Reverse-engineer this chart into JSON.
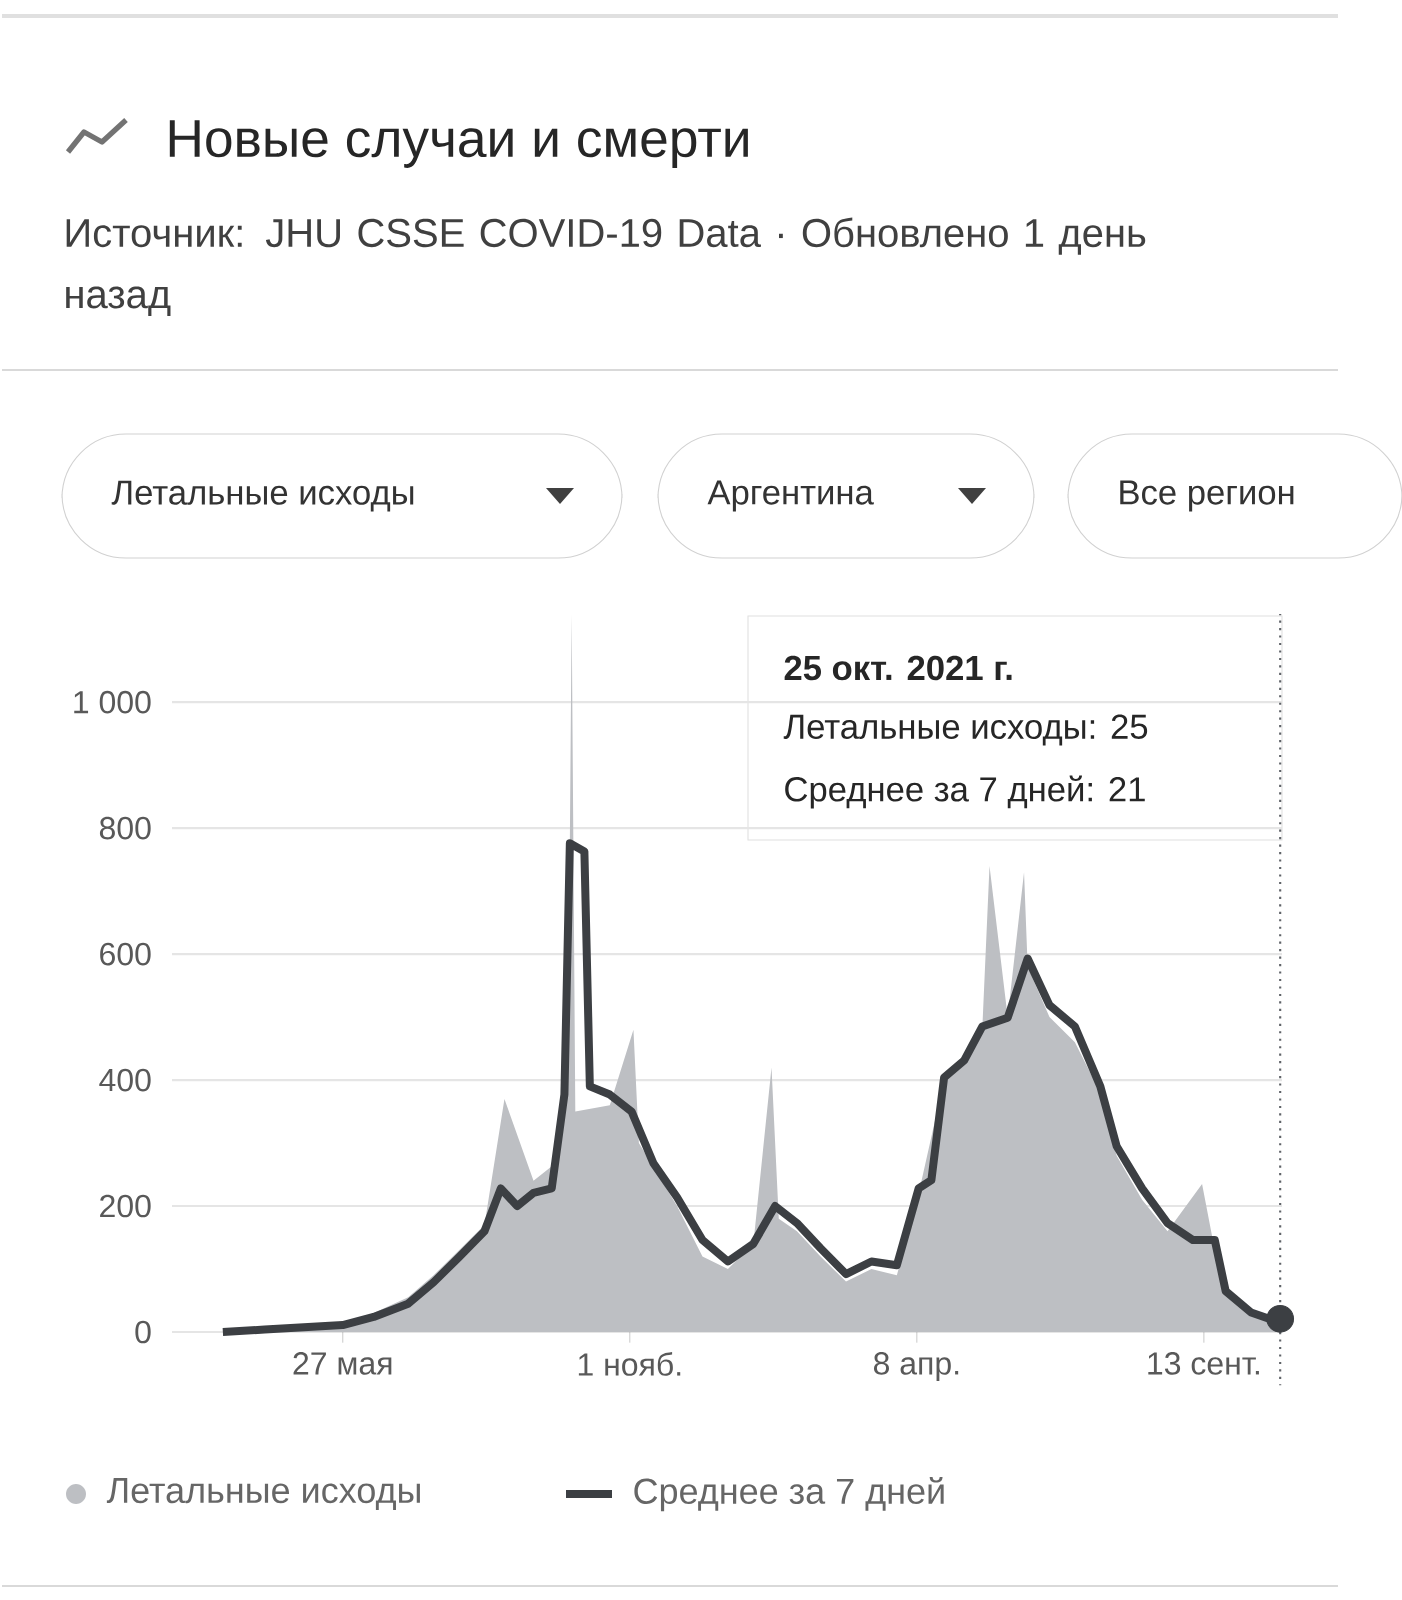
{
  "chart_data": {
    "type": "area",
    "title": "Новые случаи и смерти",
    "subtitle": "Источник: JHU CSSE COVID-19 Data · Обновлено 1 день назад",
    "annotations": [
      "25 окт. 2021 г.",
      "Летальные исходы: 25",
      "Среднее за 7 дней: 21",
      "Летальные исходы",
      "Аргентина",
      "Все регион"
    ],
    "xlim": [
      "2020-02-23",
      "2021-10-26"
    ],
    "ylim": [
      0,
      1140
    ],
    "xticks": [
      {
        "value": "2020-05-27",
        "label": "27 мая"
      },
      {
        "value": "2020-11-01",
        "label": "1 нояб."
      },
      {
        "value": "2021-04-08",
        "label": "8 апр."
      },
      {
        "value": "2021-09-13",
        "label": "13 сент."
      }
    ],
    "yticks": [
      0,
      200,
      400,
      600,
      800,
      {
        "value": 1000,
        "label": "1 000"
      }
    ],
    "grid": "y",
    "legend": "bottom left",
    "ref_lines": [
      {
        "axis": "x",
        "value": "2021-10-25",
        "line_style": "dotted",
        "color": "#5f6368"
      }
    ],
    "series": [
      {
        "name": "Летальные исходы",
        "color": "#bdbfc3",
        "x": [
          "2020-03-22",
          "2020-04-14",
          "2020-05-27",
          "2020-06-13",
          "2020-07-02",
          "2020-07-16",
          "2020-07-30",
          "2020-08-13",
          "2020-08-24",
          "2020-09-09",
          "2020-09-22",
          "2020-09-28",
          "2020-09-30",
          "2020-10-02",
          "2020-10-21",
          "2020-11-03",
          "2020-11-06",
          "2020-11-27",
          "2020-12-11",
          "2020-12-25",
          "2021-01-08",
          "2021-01-18",
          "2021-01-22",
          "2021-02-01",
          "2021-02-14",
          "2021-02-28",
          "2021-03-14",
          "2021-03-28",
          "2021-04-09",
          "2021-04-23",
          "2021-05-04",
          "2021-05-14",
          "2021-05-18",
          "2021-05-28",
          "2021-06-06",
          "2021-06-08",
          "2021-06-20",
          "2021-07-04",
          "2021-07-18",
          "2021-07-27",
          "2021-08-10",
          "2021-08-24",
          "2021-09-12",
          "2021-09-19",
          "2021-09-25",
          "2021-10-09",
          "2021-10-25"
        ],
        "values": [
          0,
          5,
          12,
          30,
          55,
          90,
          130,
          170,
          370,
          240,
          270,
          420,
          1140,
          350,
          360,
          480,
          300,
          200,
          120,
          100,
          140,
          420,
          180,
          160,
          120,
          80,
          100,
          90,
          220,
          400,
          430,
          480,
          740,
          500,
          730,
          580,
          500,
          460,
          380,
          280,
          210,
          160,
          235,
          130,
          60,
          25,
          25
        ]
      },
      {
        "name": "Среднее за 7 дней",
        "type": "line",
        "color": "#3c3f43",
        "x": [
          "2020-03-22",
          "2020-04-14",
          "2020-05-27",
          "2020-06-13",
          "2020-07-02",
          "2020-07-16",
          "2020-07-30",
          "2020-08-13",
          "2020-08-22",
          "2020-08-31",
          "2020-09-09",
          "2020-09-19",
          "2020-09-26",
          "2020-09-29",
          "2020-10-07",
          "2020-10-10",
          "2020-10-21",
          "2020-11-02",
          "2020-11-14",
          "2020-11-27",
          "2020-12-11",
          "2020-12-25",
          "2021-01-08",
          "2021-01-20",
          "2021-02-01",
          "2021-02-14",
          "2021-02-28",
          "2021-03-14",
          "2021-03-28",
          "2021-04-09",
          "2021-04-16",
          "2021-04-23",
          "2021-05-04",
          "2021-05-14",
          "2021-05-28",
          "2021-06-08",
          "2021-06-20",
          "2021-07-04",
          "2021-07-18",
          "2021-07-27",
          "2021-08-10",
          "2021-08-24",
          "2021-09-07",
          "2021-09-19",
          "2021-09-25",
          "2021-10-09",
          "2021-10-22",
          "2021-10-25"
        ],
        "values": [
          0,
          4,
          11,
          24,
          45,
          79,
          119,
          160,
          228,
          200,
          221,
          228,
          377,
          776,
          763,
          390,
          377,
          350,
          268,
          214,
          146,
          112,
          140,
          200,
          173,
          133,
          92,
          112,
          106,
          228,
          241,
          404,
          431,
          485,
          499,
          593,
          519,
          485,
          390,
          295,
          228,
          173,
          146,
          146,
          65,
          31,
          18,
          21
        ]
      },
      {
        "type": "scatter",
        "marker": "circle",
        "color": "#3c3f43",
        "x": [
          "2021-10-25"
        ],
        "values": [
          21
        ]
      }
    ]
  }
}
